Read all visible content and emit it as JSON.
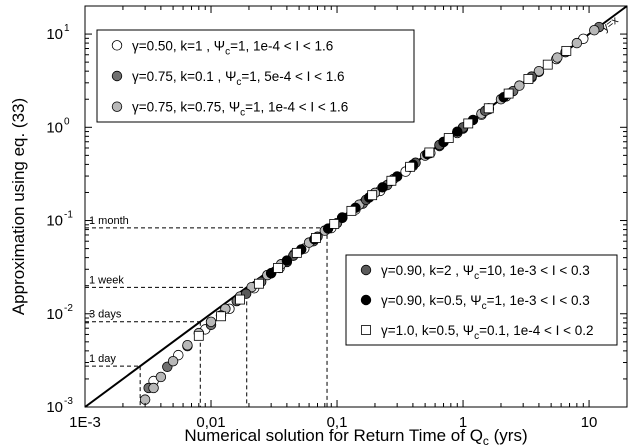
{
  "chart_data": {
    "type": "scatter",
    "xscale": "log",
    "yscale": "log",
    "xlim": [
      0.001,
      20
    ],
    "ylim": [
      0.001,
      20
    ],
    "grid": false,
    "xlabel": {
      "main": "Numerical solution for Return Time of Q",
      "sub": "c",
      "tail": " (yrs)"
    },
    "ylabel": "Approximation using eq. (33)",
    "xticks": [
      {
        "value": 0.001,
        "label": "1E-3"
      },
      {
        "value": 0.01,
        "label": "0,01"
      },
      {
        "value": 0.1,
        "label": "0,1"
      },
      {
        "value": 1,
        "label": "1"
      },
      {
        "value": 10,
        "label": "10"
      }
    ],
    "yticks": [
      {
        "value": 0.001,
        "base": "10",
        "exp": "-3"
      },
      {
        "value": 0.01,
        "base": "10",
        "exp": "-2"
      },
      {
        "value": 0.1,
        "base": "10",
        "exp": "-1"
      },
      {
        "value": 1,
        "base": "10",
        "exp": "0"
      },
      {
        "value": 10,
        "base": "10",
        "exp": "1"
      }
    ],
    "reference_line": {
      "label": "y=x"
    },
    "annotations": [
      {
        "label": "1 day",
        "value": 0.00274
      },
      {
        "label": "3 days",
        "value": 0.00822
      },
      {
        "label": "1 week",
        "value": 0.0192
      },
      {
        "label": "1 month",
        "value": 0.0833
      }
    ],
    "legends": [
      {
        "placement": "top-left",
        "entries": [
          {
            "series": 0,
            "parts": [
              "γ=0.50, k=1 , Ψ",
              "c",
              "=1, 1e-4 < I < 1.6"
            ]
          },
          {
            "series": 1,
            "parts": [
              "γ=0.75, k=0.1 , Ψ",
              "c",
              "=1, 5e-4 < I < 1.6"
            ]
          },
          {
            "series": 2,
            "parts": [
              "γ=0.75, k=0.75, Ψ",
              "c",
              "=1, 1e-4 < I < 1.6"
            ]
          }
        ]
      },
      {
        "placement": "bottom-right",
        "entries": [
          {
            "series": 3,
            "parts": [
              "γ=0.90, k=2 , Ψ",
              "c",
              "=10, 1e-3 < I < 0.3"
            ]
          },
          {
            "series": 4,
            "parts": [
              "γ=0.90, k=0.5, Ψ",
              "c",
              "=1, 1e-3 < I < 0.3"
            ]
          },
          {
            "series": 5,
            "parts": [
              "γ=1.0, k=0.5, Ψ",
              "c",
              "=0.1, 1e-4 < I < 0.2"
            ]
          }
        ]
      }
    ],
    "series": [
      {
        "marker": "circle",
        "fill": "#ffffff",
        "x": [
          0.0035,
          0.0055,
          0.009,
          0.014,
          0.022,
          0.035,
          0.055,
          0.09,
          0.14,
          0.22,
          0.35,
          0.55,
          0.9,
          1.4,
          2.2,
          3.5,
          5.5,
          9
        ],
        "y": [
          0.0019,
          0.0036,
          0.0068,
          0.0113,
          0.0188,
          0.031,
          0.05,
          0.083,
          0.131,
          0.208,
          0.335,
          0.53,
          0.87,
          1.36,
          2.15,
          3.42,
          5.4,
          8.9
        ]
      },
      {
        "marker": "circle",
        "fill": "#707070",
        "x": [
          0.0032,
          0.0045,
          0.0065,
          0.01,
          0.016,
          0.025,
          0.04,
          0.065,
          0.1,
          0.16,
          0.25,
          0.4,
          0.65,
          1,
          1.6,
          2.5,
          4,
          6.5,
          12
        ],
        "y": [
          0.0016,
          0.0027,
          0.0045,
          0.0076,
          0.0137,
          0.022,
          0.036,
          0.06,
          0.094,
          0.152,
          0.24,
          0.385,
          0.63,
          0.97,
          1.56,
          2.45,
          3.93,
          6.4,
          11.9
        ]
      },
      {
        "marker": "circle",
        "fill": "#b8b8b8",
        "x": [
          0.003,
          0.0035,
          0.004,
          0.005,
          0.0065,
          0.008,
          0.01,
          0.013,
          0.017,
          0.021,
          0.028,
          0.036,
          0.046,
          0.06,
          0.08,
          0.11,
          0.15,
          0.2,
          0.28,
          0.38,
          0.5,
          0.7,
          1,
          1.4,
          2,
          2.8,
          4,
          5.6,
          8,
          11
        ],
        "y": [
          0.0012,
          0.0016,
          0.0021,
          0.0031,
          0.0046,
          0.0062,
          0.0082,
          0.0113,
          0.0153,
          0.0193,
          0.026,
          0.034,
          0.044,
          0.058,
          0.078,
          0.108,
          0.148,
          0.198,
          0.278,
          0.377,
          0.497,
          0.697,
          0.997,
          1.4,
          2,
          2.8,
          4,
          5.6,
          8,
          11
        ]
      },
      {
        "marker": "circle",
        "fill": "#5a5a5a",
        "x": [
          0.012,
          0.019,
          0.03,
          0.045,
          0.07,
          0.11,
          0.17,
          0.27,
          0.42,
          0.65,
          1,
          1.5,
          2.3,
          3.5
        ],
        "y": [
          0.0096,
          0.0164,
          0.0272,
          0.042,
          0.067,
          0.107,
          0.167,
          0.267,
          0.417,
          0.647,
          0.997,
          1.5,
          2.3,
          3.5
        ]
      },
      {
        "marker": "circle",
        "fill": "#000000",
        "x": [
          0.03,
          0.04,
          0.052,
          0.066,
          0.085,
          0.11,
          0.14,
          0.18,
          0.23,
          0.3,
          0.4,
          0.52,
          0.7,
          0.9,
          1.2,
          1.6,
          2.1
        ],
        "y": [
          0.0272,
          0.0372,
          0.049,
          0.063,
          0.082,
          0.107,
          0.137,
          0.177,
          0.227,
          0.297,
          0.397,
          0.517,
          0.697,
          0.897,
          1.2,
          1.6,
          2.1
        ]
      },
      {
        "marker": "square",
        "fill": "#ffffff",
        "x": [
          0.008,
          0.012,
          0.017,
          0.024,
          0.034,
          0.048,
          0.068,
          0.095,
          0.13,
          0.19,
          0.27,
          0.38,
          0.54,
          0.77,
          1.1,
          1.6,
          2.3,
          3.3,
          4.7,
          6.6
        ],
        "y": [
          0.0058,
          0.0094,
          0.0142,
          0.021,
          0.031,
          0.045,
          0.065,
          0.092,
          0.127,
          0.187,
          0.267,
          0.377,
          0.537,
          0.767,
          1.1,
          1.6,
          2.3,
          3.3,
          4.7,
          6.6
        ]
      }
    ]
  }
}
